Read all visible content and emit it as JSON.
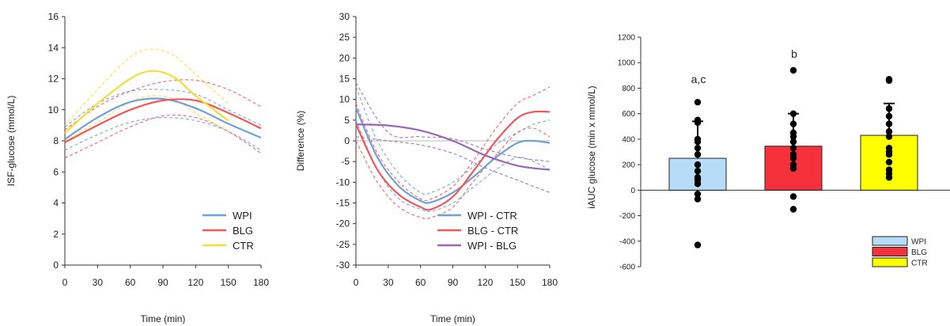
{
  "colors": {
    "WPI": "#6fa0d6",
    "BLG": "#f0585c",
    "CTR": "#f2de3c",
    "WPI_BLG": "#9a67b3",
    "bar_WPI": "#b7dcf7",
    "bar_BLG": "#f5313c",
    "bar_CTR": "#ffff00",
    "zero_line": "#c8c8c8"
  },
  "chart_data": [
    {
      "type": "line",
      "xlabel": "Time (min)",
      "ylabel": "ISF-glucose (mmol/L)",
      "xlim": [
        0,
        180
      ],
      "ylim": [
        0,
        16
      ],
      "xticks": [
        "0",
        "30",
        "60",
        "90",
        "120",
        "150",
        "180"
      ],
      "yticks": [
        "0",
        "2",
        "4",
        "6",
        "8",
        "10",
        "12",
        "14",
        "16"
      ],
      "legend_position": "bottom-right",
      "series": [
        {
          "name": "WPI",
          "color_key": "WPI",
          "x": [
            0,
            30,
            60,
            90,
            120,
            150,
            180
          ],
          "y": [
            8.1,
            9.5,
            10.5,
            10.7,
            10.1,
            9.1,
            8.2
          ],
          "lower": [
            7.4,
            8.4,
            9.2,
            9.5,
            9.3,
            8.6,
            7.4
          ],
          "upper": [
            8.9,
            10.4,
            11.2,
            11.3,
            11.0,
            10.0,
            9.0
          ]
        },
        {
          "name": "BLG",
          "color_key": "BLG",
          "x": [
            0,
            30,
            60,
            90,
            120,
            150,
            180
          ],
          "y": [
            7.9,
            9.0,
            10.0,
            10.6,
            10.6,
            9.8,
            8.8
          ],
          "lower": [
            6.9,
            7.9,
            8.9,
            9.6,
            9.5,
            8.6,
            7.2
          ],
          "upper": [
            8.7,
            10.2,
            11.2,
            11.8,
            11.9,
            11.3,
            10.2
          ]
        },
        {
          "name": "CTR",
          "color_key": "CTR",
          "x": [
            0,
            30,
            60,
            80,
            100,
            120,
            150
          ],
          "y": [
            8.5,
            10.4,
            12.0,
            12.5,
            12.1,
            10.9,
            9.3
          ],
          "lower": [
            8.0,
            9.2,
            10.5,
            10.9,
            10.7,
            9.8,
            8.6
          ],
          "upper": [
            9.0,
            11.3,
            13.4,
            13.9,
            13.5,
            12.3,
            10.4
          ]
        }
      ]
    },
    {
      "type": "line",
      "xlabel": "Time (min)",
      "ylabel": "Difference (%)",
      "xlim": [
        0,
        180
      ],
      "ylim": [
        -30,
        30
      ],
      "xticks": [
        "0",
        "30",
        "60",
        "90",
        "120",
        "150",
        "180"
      ],
      "yticks": [
        "-30",
        "-25",
        "-20",
        "-15",
        "-10",
        "-5",
        "0",
        "5",
        "10",
        "15",
        "20",
        "25",
        "30"
      ],
      "legend_position": "bottom-right",
      "series": [
        {
          "name": "WPI - CTR",
          "color_key": "WPI",
          "x": [
            0,
            20,
            40,
            60,
            70,
            90,
            110,
            130,
            150,
            165,
            180
          ],
          "y": [
            8,
            -4,
            -11,
            -14.5,
            -14.8,
            -12.5,
            -8.5,
            -4,
            -0.5,
            0,
            -0.5
          ],
          "lower": [
            5,
            -7,
            -14,
            -16.5,
            -17,
            -15,
            -11,
            -7,
            -4,
            -5,
            -7
          ],
          "upper": [
            13,
            0,
            -8,
            -12.5,
            -12.5,
            -10,
            -6,
            -1,
            2,
            4,
            5
          ]
        },
        {
          "name": "BLG - CTR",
          "color_key": "BLG",
          "x": [
            0,
            20,
            40,
            60,
            70,
            90,
            110,
            130,
            150,
            165,
            180
          ],
          "y": [
            4,
            -7,
            -13,
            -16,
            -16.5,
            -13.5,
            -7,
            0,
            5.5,
            7,
            7
          ],
          "lower": [
            0,
            -10,
            -16,
            -18.5,
            -18.5,
            -16,
            -9.5,
            -3.5,
            2,
            3,
            1
          ],
          "upper": [
            9,
            -3,
            -10,
            -14,
            -14,
            -11,
            -4.5,
            3,
            9,
            11,
            13
          ]
        },
        {
          "name": "WPI - BLG",
          "color_key": "WPI_BLG",
          "x": [
            0,
            30,
            60,
            90,
            120,
            150,
            180
          ],
          "y": [
            4,
            3.7,
            2.5,
            0,
            -3.5,
            -6,
            -7
          ],
          "lower": [
            1,
            0,
            -1,
            -3,
            -6.5,
            -9.5,
            -12.5
          ],
          "upper": [
            14,
            2,
            1,
            0.5,
            -2,
            -4,
            -5
          ]
        }
      ]
    },
    {
      "type": "bar",
      "ylabel": "iAUC glucose (min x mmol/L)",
      "ylim": [
        -600,
        1200
      ],
      "yticks": [
        "-600",
        "-400",
        "-200",
        "0",
        "200",
        "400",
        "600",
        "800",
        "1000",
        "1200"
      ],
      "categories": [
        "WPI",
        "BLG",
        "CTR"
      ],
      "values": [
        250,
        345,
        430
      ],
      "errors": [
        290,
        255,
        250
      ],
      "annotations": [
        "a,c",
        "b",
        ""
      ],
      "legend_position": "bottom-right",
      "points": [
        [
          690,
          550,
          530,
          400,
          380,
          330,
          280,
          200,
          150,
          100,
          80,
          50,
          -30,
          -70,
          -430
        ],
        [
          940,
          600,
          520,
          450,
          420,
          380,
          330,
          280,
          250,
          200,
          170,
          -50,
          -150
        ],
        [
          870,
          860,
          640,
          580,
          520,
          460,
          420,
          330,
          300,
          280,
          220,
          160,
          130,
          100
        ]
      ]
    }
  ]
}
